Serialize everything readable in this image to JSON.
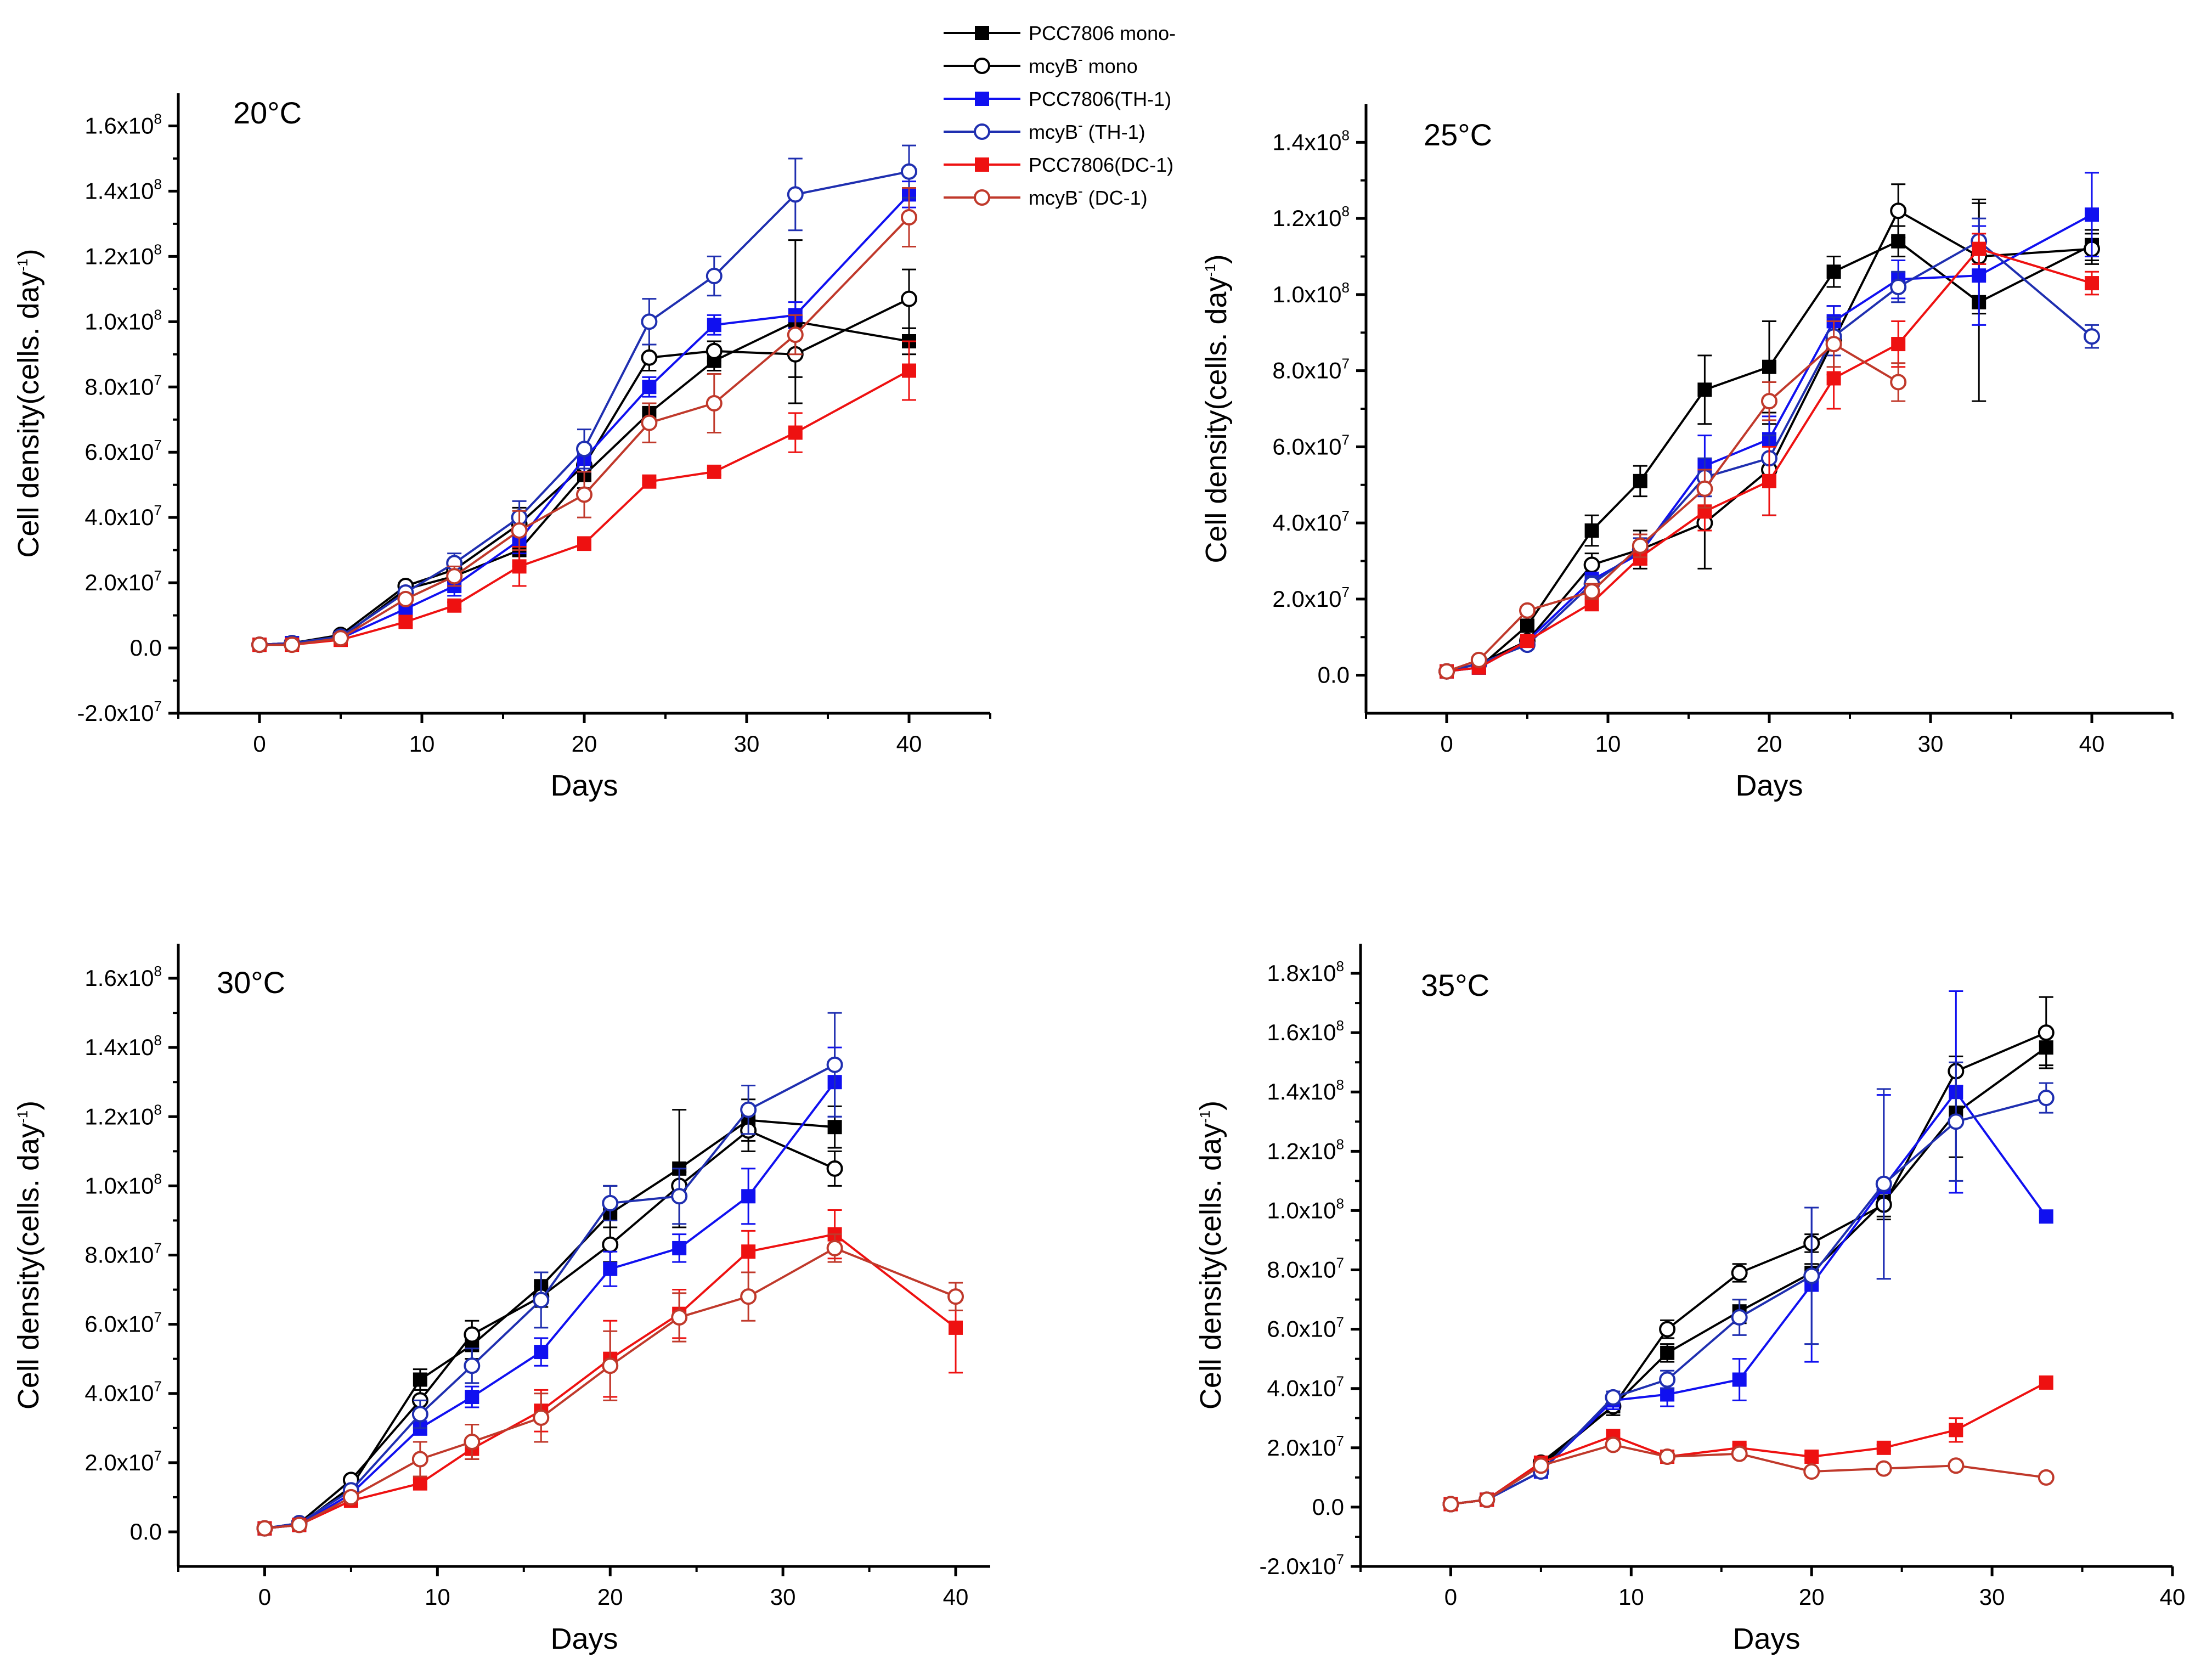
{
  "colors": {
    "PCC7806 mono-": "#000000",
    "mcyB mono": "#000000",
    "PCC7806(TH-1)": "#1010f0",
    "mcyB (TH-1)": "#1f2fb0",
    "PCC7806(DC-1)": "#ee1111",
    "mcyB (DC-1)": "#c0392b"
  },
  "legend": [
    {
      "key": "PCC7806 mono-",
      "label": "PCC7806 mono-",
      "sup": "",
      "after": "",
      "marker": "filled-square"
    },
    {
      "key": "mcyB mono",
      "label": "mcyB",
      "sup": "-",
      "after": " mono",
      "marker": "open-circle"
    },
    {
      "key": "PCC7806(TH-1)",
      "label": "PCC7806(TH-1)",
      "sup": "",
      "after": "",
      "marker": "filled-square"
    },
    {
      "key": "mcyB (TH-1)",
      "label": "mcyB",
      "sup": "-",
      "after": " (TH-1)",
      "marker": "open-circle"
    },
    {
      "key": "PCC7806(DC-1)",
      "label": "PCC7806(DC-1)",
      "sup": "",
      "after": "",
      "marker": "filled-square"
    },
    {
      "key": "mcyB (DC-1)",
      "label": "mcyB",
      "sup": "-",
      "after": " (DC-1)",
      "marker": "open-circle"
    }
  ],
  "chart_data": [
    {
      "type": "line",
      "title": "20°C",
      "xlabel": "Days",
      "ylabel": "Cell density(cells. day-1)",
      "xlim": [
        -5,
        45
      ],
      "ylim": [
        -20000000.0,
        170000000.0
      ],
      "xticks": [
        "0",
        "10",
        "20",
        "30",
        "40"
      ],
      "yticks": [
        "-2.0x10^7",
        "0.0",
        "2.0x10^7",
        "4.0x10^7",
        "6.0x10^7",
        "8.0x10^7",
        "1.0x10^8",
        "1.2x10^8",
        "1.4x10^8",
        "1.6x10^8"
      ],
      "x": [
        0,
        2,
        5,
        9,
        12,
        16,
        20,
        24,
        28,
        33,
        40
      ],
      "series": [
        {
          "name": "PCC7806 mono-",
          "values": [
            1000000.0,
            1500000.0,
            3000000.0,
            18000000.0,
            22000000.0,
            30000000.0,
            53000000.0,
            72000000.0,
            88000000.0,
            100000000.0,
            94000000.0
          ],
          "errors": [
            0,
            0,
            0,
            1000000.0,
            3000000.0,
            5000000.0,
            4000000.0,
            3000000.0,
            3000000.0,
            25000000.0,
            4000000.0
          ]
        },
        {
          "name": "mcyB mono",
          "values": [
            1000000.0,
            1500000.0,
            4000000.0,
            19000000.0,
            24000000.0,
            38000000.0,
            56000000.0,
            89000000.0,
            91000000.0,
            90000000.0,
            107000000.0
          ],
          "errors": [
            0,
            0,
            0,
            1000000.0,
            3000000.0,
            5000000.0,
            4000000.0,
            4000000.0,
            3000000.0,
            7000000.0,
            9000000.0
          ]
        },
        {
          "name": "PCC7806(TH-1)",
          "values": [
            1000000.0,
            1500000.0,
            3000000.0,
            12000000.0,
            19000000.0,
            33000000.0,
            58000000.0,
            80000000.0,
            99000000.0,
            102000000.0,
            139000000.0
          ],
          "errors": [
            0,
            0,
            0,
            1000000.0,
            3000000.0,
            4000000.0,
            4000000.0,
            3000000.0,
            3000000.0,
            4000000.0,
            4000000.0
          ]
        },
        {
          "name": "mcyB (TH-1)",
          "values": [
            1000000.0,
            1500000.0,
            3500000.0,
            17000000.0,
            26000000.0,
            40000000.0,
            61000000.0,
            100000000.0,
            114000000.0,
            139000000.0,
            146000000.0
          ],
          "errors": [
            0,
            0,
            0,
            1000000.0,
            3000000.0,
            5000000.0,
            6000000.0,
            7000000.0,
            6000000.0,
            11000000.0,
            8000000.0
          ]
        },
        {
          "name": "PCC7806(DC-1)",
          "values": [
            1000000.0,
            1000000.0,
            2500000.0,
            8000000.0,
            13000000.0,
            25000000.0,
            32000000.0,
            51000000.0,
            54000000.0,
            66000000.0,
            85000000.0
          ],
          "errors": [
            0,
            0,
            0,
            1000000.0,
            1000000.0,
            6000000.0,
            2000000.0,
            1000000.0,
            1000000.0,
            6000000.0,
            9000000.0
          ]
        },
        {
          "name": "mcyB (DC-1)",
          "values": [
            1000000.0,
            1000000.0,
            3000000.0,
            15000000.0,
            22000000.0,
            36000000.0,
            47000000.0,
            69000000.0,
            75000000.0,
            96000000.0,
            132000000.0
          ],
          "errors": [
            0,
            0,
            0,
            1000000.0,
            3000000.0,
            6000000.0,
            7000000.0,
            6000000.0,
            9000000.0,
            6000000.0,
            9000000.0
          ]
        }
      ]
    },
    {
      "type": "line",
      "title": "25°C",
      "xlabel": "Days",
      "ylabel": "Cell density(cells. day-1)",
      "xlim": [
        -5,
        45
      ],
      "ylim": [
        -10000000.0,
        150000000.0
      ],
      "xticks": [
        "0",
        "10",
        "20",
        "30",
        "40"
      ],
      "yticks": [
        "0.0",
        "2.0x10^7",
        "4.0x10^7",
        "6.0x10^7",
        "8.0x10^7",
        "1.0x10^8",
        "1.2x10^8",
        "1.4x10^8"
      ],
      "x": [
        0,
        2,
        5,
        9,
        12,
        16,
        20,
        24,
        28,
        33,
        40
      ],
      "series": [
        {
          "name": "PCC7806 mono-",
          "values": [
            1000000.0,
            2000000.0,
            13000000.0,
            38000000.0,
            51000000.0,
            75000000.0,
            81000000.0,
            106000000.0,
            114000000.0,
            98000000.0,
            113000000.0
          ],
          "errors": [
            0,
            0,
            1000000.0,
            4000000.0,
            4000000.0,
            9000000.0,
            12000000.0,
            4000000.0,
            4000000.0,
            26000000.0,
            4000000.0
          ]
        },
        {
          "name": "mcyB mono",
          "values": [
            1000000.0,
            3000000.0,
            9000000.0,
            29000000.0,
            33000000.0,
            40000000.0,
            54000000.0,
            88000000.0,
            122000000.0,
            110000000.0,
            112000000.0
          ],
          "errors": [
            0,
            0,
            1000000.0,
            3000000.0,
            5000000.0,
            12000000.0,
            12000000.0,
            9000000.0,
            7000000.0,
            15000000.0,
            4000000.0
          ]
        },
        {
          "name": "PCC7806(TH-1)",
          "values": [
            1000000.0,
            2000000.0,
            9000000.0,
            25000000.0,
            32000000.0,
            55000000.0,
            62000000.0,
            93000000.0,
            104000000.0,
            105000000.0,
            121000000.0
          ],
          "errors": [
            0,
            0,
            1000000.0,
            2000000.0,
            3000000.0,
            8000000.0,
            6000000.0,
            4000000.0,
            5000000.0,
            13000000.0,
            11000000.0
          ]
        },
        {
          "name": "mcyB (TH-1)",
          "values": [
            1000000.0,
            3000000.0,
            8000000.0,
            24000000.0,
            33000000.0,
            52000000.0,
            57000000.0,
            89000000.0,
            102000000.0,
            114000000.0,
            89000000.0
          ],
          "errors": [
            0,
            0,
            1000000.0,
            2000000.0,
            3000000.0,
            5000000.0,
            6000000.0,
            5000000.0,
            4000000.0,
            6000000.0,
            3000000.0
          ]
        },
        {
          "name": "PCC7806(DC-1)",
          "values": [
            1000000.0,
            2000000.0,
            9000000.0,
            19000000.0,
            31000000.0,
            43000000.0,
            51000000.0,
            78000000.0,
            87000000.0,
            112000000.0,
            103000000.0
          ],
          "errors": [
            0,
            0,
            1000000.0,
            2000000.0,
            2000000.0,
            5000000.0,
            9000000.0,
            8000000.0,
            6000000.0,
            4000000.0,
            3000000.0
          ]
        },
        {
          "name": "mcyB (DC-1)",
          "values": [
            1000000.0,
            4000000.0,
            17000000.0,
            22000000.0,
            34000000.0,
            49000000.0,
            72000000.0,
            87000000.0,
            77000000.0,
            null,
            null
          ],
          "errors": [
            0,
            0,
            1000000.0,
            2000000.0,
            3000000.0,
            5000000.0,
            5000000.0,
            6000000.0,
            5000000.0,
            0,
            0
          ]
        }
      ]
    },
    {
      "type": "line",
      "title": "30°C",
      "xlabel": "Days",
      "ylabel": "Cell density(cells. day-1)",
      "xlim": [
        -5,
        42
      ],
      "ylim": [
        -10000000.0,
        170000000.0
      ],
      "xticks": [
        "0",
        "10",
        "20",
        "30",
        "40"
      ],
      "yticks": [
        "0.0",
        "2.0x10^7",
        "4.0x10^7",
        "6.0x10^7",
        "8.0x10^7",
        "1.0x10^8",
        "1.2x10^8",
        "1.4x10^8",
        "1.6x10^8"
      ],
      "x": [
        0,
        2,
        5,
        9,
        12,
        16,
        20,
        24,
        28,
        33,
        40
      ],
      "series": [
        {
          "name": "PCC7806 mono-",
          "values": [
            1000000.0,
            2000000.0,
            13000000.0,
            44000000.0,
            54000000.0,
            71000000.0,
            92000000.0,
            105000000.0,
            119000000.0,
            117000000.0,
            null
          ],
          "errors": [
            0,
            0,
            1000000.0,
            3000000.0,
            4000000.0,
            4000000.0,
            8000000.0,
            17000000.0,
            6000000.0,
            6000000.0,
            0
          ]
        },
        {
          "name": "mcyB mono",
          "values": [
            1000000.0,
            2500000.0,
            15000000.0,
            38000000.0,
            57000000.0,
            68000000.0,
            83000000.0,
            100000000.0,
            116000000.0,
            105000000.0,
            null
          ],
          "errors": [
            0,
            0,
            1000000.0,
            3000000.0,
            4000000.0,
            3000000.0,
            5000000.0,
            4000000.0,
            6000000.0,
            5000000.0,
            0
          ]
        },
        {
          "name": "PCC7806(TH-1)",
          "values": [
            1000000.0,
            2000000.0,
            11000000.0,
            30000000.0,
            39000000.0,
            52000000.0,
            76000000.0,
            82000000.0,
            97000000.0,
            130000000.0,
            null
          ],
          "errors": [
            0,
            0,
            1000000.0,
            2000000.0,
            3000000.0,
            4000000.0,
            5000000.0,
            4000000.0,
            8000000.0,
            10000000.0,
            0
          ]
        },
        {
          "name": "mcyB (TH-1)",
          "values": [
            1000000.0,
            2500000.0,
            12000000.0,
            34000000.0,
            48000000.0,
            67000000.0,
            95000000.0,
            97000000.0,
            122000000.0,
            135000000.0,
            null
          ],
          "errors": [
            0,
            0,
            1000000.0,
            4000000.0,
            5000000.0,
            8000000.0,
            5000000.0,
            8000000.0,
            7000000.0,
            15000000.0,
            0
          ]
        },
        {
          "name": "PCC7806(DC-1)",
          "values": [
            1000000.0,
            2000000.0,
            9000000.0,
            14000000.0,
            24000000.0,
            35000000.0,
            50000000.0,
            63000000.0,
            81000000.0,
            86000000.0,
            59000000.0
          ],
          "errors": [
            0,
            0,
            1000000.0,
            1000000.0,
            3000000.0,
            6000000.0,
            11000000.0,
            7000000.0,
            6000000.0,
            7000000.0,
            13000000.0
          ]
        },
        {
          "name": "mcyB (DC-1)",
          "values": [
            1000000.0,
            2000000.0,
            10000000.0,
            21000000.0,
            26000000.0,
            33000000.0,
            48000000.0,
            62000000.0,
            68000000.0,
            82000000.0,
            68000000.0
          ],
          "errors": [
            0,
            0,
            1000000.0,
            5000000.0,
            5000000.0,
            7000000.0,
            10000000.0,
            7000000.0,
            7000000.0,
            4000000.0,
            4000000.0
          ]
        }
      ]
    },
    {
      "type": "line",
      "title": "35°C",
      "xlabel": "Days",
      "ylabel": "Cell density(cells. day-1)",
      "xlim": [
        -5,
        40
      ],
      "ylim": [
        -20000000.0,
        190000000.0
      ],
      "xticks": [
        "0",
        "10",
        "20",
        "30",
        "40"
      ],
      "yticks": [
        "-2.0x10^7",
        "0.0",
        "2.0x10^7",
        "4.0x10^7",
        "6.0x10^7",
        "8.0x10^7",
        "1.0x10^8",
        "1.2x10^8",
        "1.4x10^8",
        "1.6x10^8",
        "1.8x10^8"
      ],
      "x": [
        0,
        2,
        5,
        9,
        12,
        16,
        20,
        24,
        28,
        33
      ],
      "series": [
        {
          "name": "PCC7806 mono-",
          "values": [
            1000000.0,
            2500000.0,
            14000000.0,
            34000000.0,
            52000000.0,
            66000000.0,
            79000000.0,
            103000000.0,
            133000000.0,
            155000000.0
          ],
          "errors": [
            0,
            0,
            1000000.0,
            3000000.0,
            3000000.0,
            4000000.0,
            3000000.0,
            5000000.0,
            15000000.0,
            6000000.0
          ]
        },
        {
          "name": "mcyB mono",
          "values": [
            1000000.0,
            2500000.0,
            15000000.0,
            34000000.0,
            60000000.0,
            79000000.0,
            89000000.0,
            102000000.0,
            147000000.0,
            160000000.0
          ],
          "errors": [
            0,
            0,
            1000000.0,
            2000000.0,
            3000000.0,
            3000000.0,
            3000000.0,
            5000000.0,
            5000000.0,
            12000000.0
          ]
        },
        {
          "name": "PCC7806(TH-1)",
          "values": [
            1000000.0,
            2500000.0,
            12000000.0,
            36000000.0,
            38000000.0,
            43000000.0,
            75000000.0,
            108000000.0,
            140000000.0,
            98000000.0
          ],
          "errors": [
            0,
            0,
            1000000.0,
            3000000.0,
            4000000.0,
            7000000.0,
            26000000.0,
            31000000.0,
            34000000.0,
            0
          ]
        },
        {
          "name": "mcyB (TH-1)",
          "values": [
            1000000.0,
            2500000.0,
            12000000.0,
            37000000.0,
            43000000.0,
            64000000.0,
            78000000.0,
            109000000.0,
            130000000.0,
            138000000.0
          ],
          "errors": [
            0,
            0,
            1000000.0,
            2000000.0,
            3000000.0,
            6000000.0,
            23000000.0,
            32000000.0,
            20000000.0,
            5000000.0
          ]
        },
        {
          "name": "PCC7806(DC-1)",
          "values": [
            1000000.0,
            2500000.0,
            15000000.0,
            24000000.0,
            17000000.0,
            20000000.0,
            17000000.0,
            20000000.0,
            26000000.0,
            42000000.0
          ],
          "errors": [
            0,
            0,
            1000000.0,
            1000000.0,
            1000000.0,
            1000000.0,
            1000000.0,
            1000000.0,
            4000000.0,
            0
          ]
        },
        {
          "name": "mcyB (DC-1)",
          "values": [
            1000000.0,
            2500000.0,
            14000000.0,
            21000000.0,
            17000000.0,
            18000000.0,
            12000000.0,
            13000000.0,
            14000000.0,
            10000000.0
          ],
          "errors": [
            0,
            0,
            1000000.0,
            1000000.0,
            1000000.0,
            1000000.0,
            1000000.0,
            1000000.0,
            1000000.0,
            0
          ]
        }
      ]
    }
  ]
}
